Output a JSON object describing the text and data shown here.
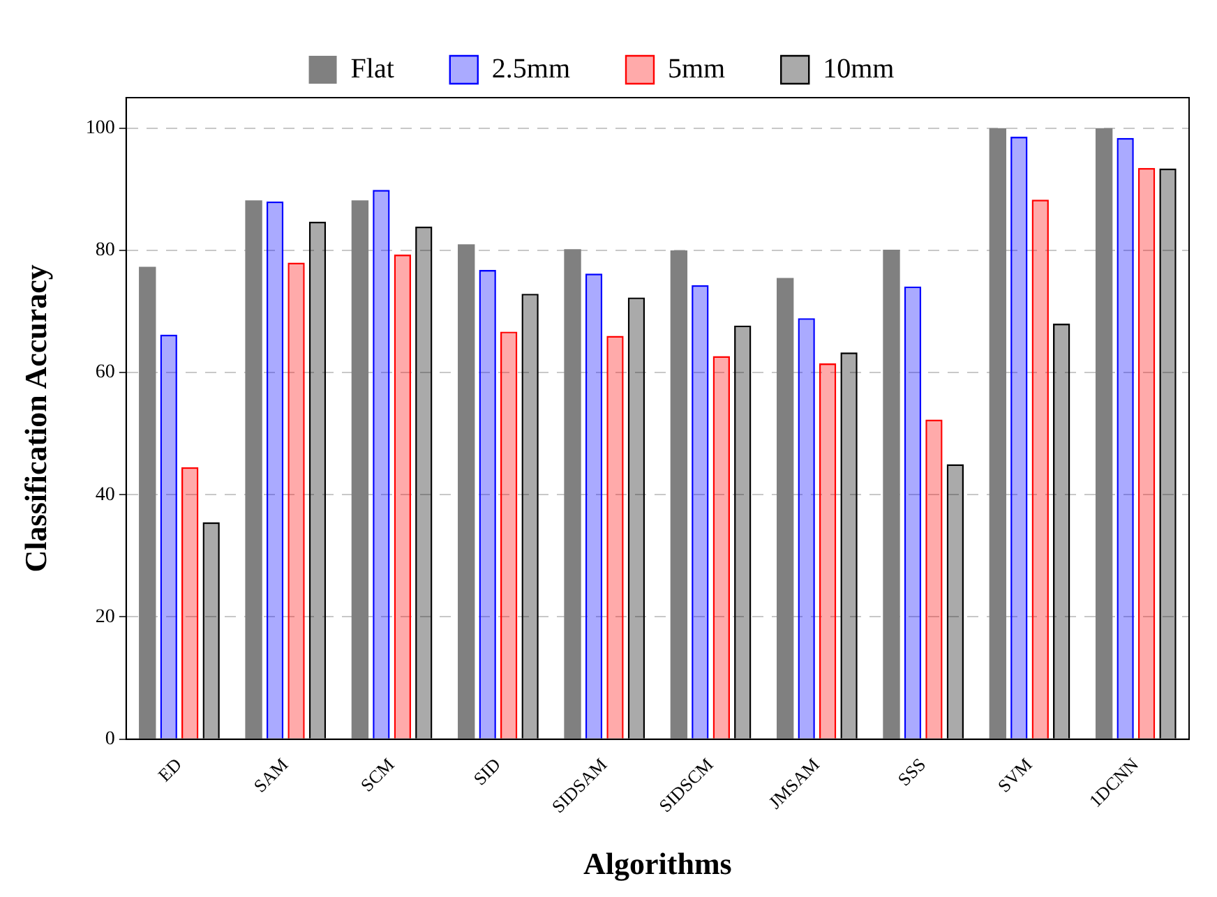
{
  "chart_data": {
    "type": "bar",
    "xlabel": "Algorithms",
    "ylabel": "Classification Accuracy",
    "categories": [
      "ED",
      "SAM",
      "SCM",
      "SID",
      "SIDSAM",
      "SIDSCM",
      "JMSAM",
      "SSS",
      "SVM",
      "1DCNN"
    ],
    "series": [
      {
        "name": "Flat",
        "color": "#808080",
        "values": [
          77.3,
          88.2,
          88.2,
          81,
          80.2,
          80,
          75.5,
          80.1,
          100,
          100
        ]
      },
      {
        "name": "2.5mm",
        "color": "#0000ff",
        "values": [
          66.2,
          88,
          89.9,
          76.8,
          76.2,
          74.3,
          68.9,
          74.1,
          98.6,
          98.4
        ]
      },
      {
        "name": "5mm",
        "color": "#ff0000",
        "values": [
          44.5,
          78,
          79.3,
          66.7,
          66,
          62.7,
          61.5,
          52.3,
          88.3,
          93.5
        ]
      },
      {
        "name": "10mm",
        "color": "#000000",
        "values": [
          35.5,
          84.7,
          83.9,
          72.9,
          72.3,
          67.7,
          63.3,
          45,
          68,
          93.4
        ]
      }
    ],
    "ylim": [
      0,
      105
    ],
    "yticks": [
      0,
      20,
      40,
      60,
      80,
      100
    ],
    "grid": "y",
    "legend": "top"
  }
}
